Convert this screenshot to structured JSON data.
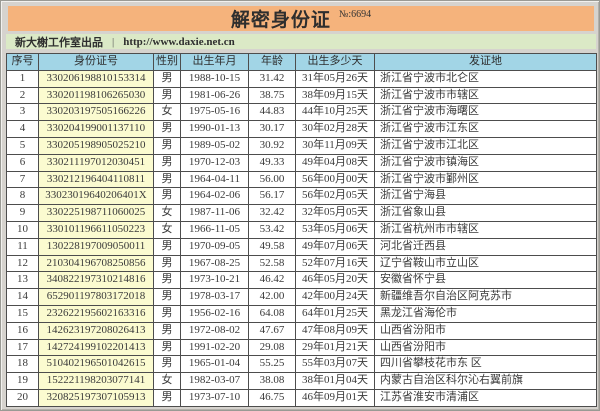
{
  "header": {
    "title": "解密身份证",
    "serial": "№:6694"
  },
  "infobar": {
    "studio": "新大榭工作室出品",
    "separator": "|",
    "url": "http://www.daxie.net.cn"
  },
  "colors": {
    "banner_bg": "#f5b37c",
    "infobar_bg": "#dbe9c6",
    "table_header_bg": "#a2d5e6",
    "id_column_bg": "#fbfbd0",
    "grid_border": "#4d4d4d",
    "window_bg": "#d6d3ce"
  },
  "table": {
    "columns": [
      "序号",
      "身份证号",
      "性别",
      "出生年月",
      "年龄",
      "出生多少天",
      "发证地"
    ],
    "rows": [
      [
        "1",
        "330206198810153314",
        "男",
        "1988-10-15",
        "31.42",
        "31年05月26天",
        "浙江省宁波市北仑区"
      ],
      [
        "2",
        "330201198106265030",
        "男",
        "1981-06-26",
        "38.75",
        "38年09月15天",
        "浙江省宁波市市辖区"
      ],
      [
        "3",
        "330203197505166226",
        "女",
        "1975-05-16",
        "44.83",
        "44年10月25天",
        "浙江省宁波市海曙区"
      ],
      [
        "4",
        "330204199001137110",
        "男",
        "1990-01-13",
        "30.17",
        "30年02月28天",
        "浙江省宁波市江东区"
      ],
      [
        "5",
        "330205198905025210",
        "男",
        "1989-05-02",
        "30.92",
        "30年11月09天",
        "浙江省宁波市江北区"
      ],
      [
        "6",
        "330211197012030451",
        "男",
        "1970-12-03",
        "49.33",
        "49年04月08天",
        "浙江省宁波市镇海区"
      ],
      [
        "7",
        "330212196404110811",
        "男",
        "1964-04-11",
        "56.00",
        "56年00月00天",
        "浙江省宁波市鄞州区"
      ],
      [
        "8",
        "33023019640206401X",
        "男",
        "1964-02-06",
        "56.17",
        "56年02月05天",
        "浙江省宁海县"
      ],
      [
        "9",
        "330225198711060025",
        "女",
        "1987-11-06",
        "32.42",
        "32年05月05天",
        "浙江省象山县"
      ],
      [
        "10",
        "330101196611050223",
        "女",
        "1966-11-05",
        "53.42",
        "53年05月06天",
        "浙江省杭州市市辖区"
      ],
      [
        "11",
        "130228197009050011",
        "男",
        "1970-09-05",
        "49.58",
        "49年07月06天",
        "河北省迁西县"
      ],
      [
        "12",
        "210304196708250856",
        "男",
        "1967-08-25",
        "52.58",
        "52年07月16天",
        "辽宁省鞍山市立山区"
      ],
      [
        "13",
        "340822197310214816",
        "男",
        "1973-10-21",
        "46.42",
        "46年05月20天",
        "安徽省怀宁县"
      ],
      [
        "14",
        "652901197803172018",
        "男",
        "1978-03-17",
        "42.00",
        "42年00月24天",
        "新疆维吾尔自治区阿克苏市"
      ],
      [
        "15",
        "232622195602163316",
        "男",
        "1956-02-16",
        "64.08",
        "64年01月25天",
        "黑龙江省海伦市"
      ],
      [
        "16",
        "142623197208026413",
        "男",
        "1972-08-02",
        "47.67",
        "47年08月09天",
        "山西省汾阳市"
      ],
      [
        "17",
        "142724199102201413",
        "男",
        "1991-02-20",
        "29.08",
        "29年01月21天",
        "山西省汾阳市"
      ],
      [
        "18",
        "510402196501042615",
        "男",
        "1965-01-04",
        "55.25",
        "55年03月07天",
        "四川省攀枝花市东 区"
      ],
      [
        "19",
        "152221198203077141",
        "女",
        "1982-03-07",
        "38.08",
        "38年01月04天",
        "内蒙古自治区科尔沁右翼前旗"
      ],
      [
        "20",
        "320825197307105913",
        "男",
        "1973-07-10",
        "46.75",
        "46年09月01天",
        "江苏省淮安市清浦区"
      ]
    ]
  }
}
